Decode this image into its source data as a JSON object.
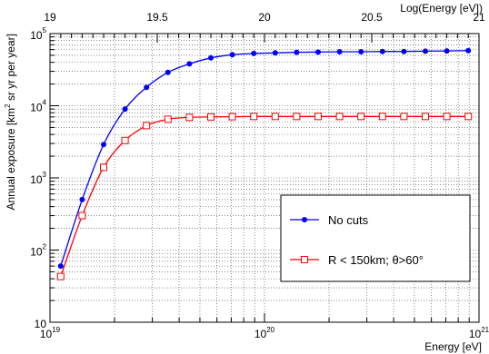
{
  "chart_data": {
    "type": "line",
    "x_scale": "log",
    "y_scale": "log",
    "xlim": [
      1e+19,
      1e+21
    ],
    "ylim": [
      10,
      100000
    ],
    "xlabel": "Energy [eV]",
    "ylabel_main": "Annual exposure [km",
    "ylabel_sup": "2",
    "ylabel_rest": " sr yr per year]",
    "top_axis_label": "Log(Energy [eV])",
    "top_ticks": [
      "19",
      "19.5",
      "20",
      "20.5",
      "21"
    ],
    "bottom_ticks": [
      {
        "mantissa": "10",
        "exp": "19"
      },
      {
        "mantissa": "10",
        "exp": "20"
      },
      {
        "mantissa": "10",
        "exp": "21"
      }
    ],
    "left_ticks": [
      {
        "mantissa": "10",
        "exp": ""
      },
      {
        "mantissa": "10",
        "exp": "2"
      },
      {
        "mantissa": "10",
        "exp": "3"
      },
      {
        "mantissa": "10",
        "exp": "4"
      },
      {
        "mantissa": "10",
        "exp": "5"
      }
    ],
    "grid": true,
    "legend_position": "center-right",
    "series": [
      {
        "name": "No cuts",
        "color": "#0000ff",
        "marker": "filled-circle",
        "log10_energy": [
          19.05,
          19.15,
          19.25,
          19.35,
          19.45,
          19.55,
          19.65,
          19.75,
          19.85,
          19.95,
          20.05,
          20.15,
          20.25,
          20.35,
          20.45,
          20.55,
          20.65,
          20.75,
          20.85,
          20.95
        ],
        "values": [
          60,
          500,
          2900,
          9000,
          18000,
          29000,
          38000,
          46000,
          51000,
          53000,
          54000,
          55000,
          55500,
          56000,
          56000,
          56500,
          56500,
          57000,
          57500,
          58000
        ]
      },
      {
        "name": "R < 150km; θ>60°",
        "color": "#ff0000",
        "marker": "open-square",
        "log10_energy": [
          19.05,
          19.15,
          19.25,
          19.35,
          19.45,
          19.55,
          19.65,
          19.75,
          19.85,
          19.95,
          20.05,
          20.15,
          20.25,
          20.35,
          20.45,
          20.55,
          20.65,
          20.75,
          20.85,
          20.95
        ],
        "values": [
          43,
          300,
          1400,
          3300,
          5300,
          6500,
          6900,
          7000,
          7050,
          7100,
          7100,
          7100,
          7100,
          7100,
          7100,
          7100,
          7100,
          7100,
          7100,
          7100
        ]
      }
    ]
  }
}
